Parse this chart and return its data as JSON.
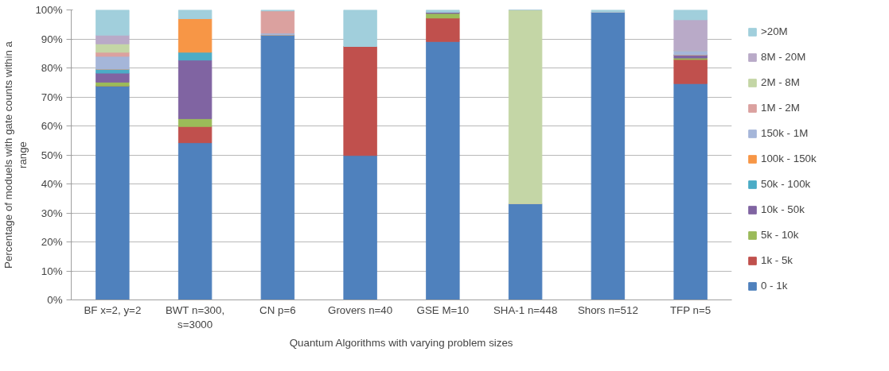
{
  "chart_data": {
    "type": "bar",
    "stacked": true,
    "xlabel": "Quantum Algorithms with varying problem sizes",
    "ylabel": "Percentage of moduels with gate counts within a range",
    "categories": [
      "BF x=2, y=2",
      "BWT n=300, s=3000",
      "CN p=6",
      "Grovers n=40",
      "GSE M=10",
      "SHA-1 n=448",
      "Shors n=512",
      "TFP n=5"
    ],
    "series": [
      {
        "name": "0 - 1k",
        "color": "#4f81bd",
        "values": [
          73.8,
          54.2,
          91.4,
          49.8,
          89.1,
          33.2,
          99.3,
          74.6
        ]
      },
      {
        "name": "1k - 5k",
        "color": "#c0504d",
        "values": [
          0,
          5.6,
          0,
          37.6,
          8.1,
          0,
          0,
          8.3
        ]
      },
      {
        "name": "5k - 10k",
        "color": "#9bbb59",
        "values": [
          1.3,
          2.7,
          0,
          0,
          1.6,
          0,
          0,
          0.5
        ]
      },
      {
        "name": "10k - 50k",
        "color": "#8064a2",
        "values": [
          3.1,
          20.2,
          0,
          0,
          0.4,
          0,
          0,
          1.1
        ]
      },
      {
        "name": "50k - 100k",
        "color": "#4bacc6",
        "values": [
          1.4,
          2.7,
          0,
          0,
          0,
          0,
          0,
          0
        ]
      },
      {
        "name": "100k - 150k",
        "color": "#f79646",
        "values": [
          0,
          11.6,
          0,
          0,
          0,
          0,
          0,
          0
        ]
      },
      {
        "name": "150k - 1M",
        "color": "#a5b6d9",
        "values": [
          4.4,
          0,
          0.6,
          0,
          0,
          0,
          0,
          1.5
        ]
      },
      {
        "name": "1M - 2M",
        "color": "#dba19f",
        "values": [
          1.4,
          0,
          7.7,
          0,
          0,
          0,
          0,
          0
        ]
      },
      {
        "name": "2M - 8M",
        "color": "#c4d6a6",
        "values": [
          2.9,
          0,
          0,
          0,
          0,
          66.8,
          0,
          0
        ]
      },
      {
        "name": "8M - 20M",
        "color": "#b9aac8",
        "values": [
          3.0,
          0,
          0,
          0,
          0,
          0,
          0,
          10.6
        ]
      },
      {
        "name": ">20M",
        "color": "#a1cfdc",
        "values": [
          8.7,
          3.0,
          0.3,
          12.6,
          0.8,
          0,
          0.7,
          3.4
        ]
      }
    ],
    "ylim": [
      0,
      100
    ],
    "yticks": [
      {
        "value": 0,
        "label": "0%"
      },
      {
        "value": 10,
        "label": "10%"
      },
      {
        "value": 20,
        "label": "20%"
      },
      {
        "value": 30,
        "label": "30%"
      },
      {
        "value": 40,
        "label": "40%"
      },
      {
        "value": 50,
        "label": "50%"
      },
      {
        "value": 60,
        "label": "60%"
      },
      {
        "value": 70,
        "label": "70%"
      },
      {
        "value": 80,
        "label": "80%"
      },
      {
        "value": 90,
        "label": "90%"
      },
      {
        "value": 100,
        "label": "100%"
      }
    ],
    "grid": "y",
    "legend": "right"
  }
}
